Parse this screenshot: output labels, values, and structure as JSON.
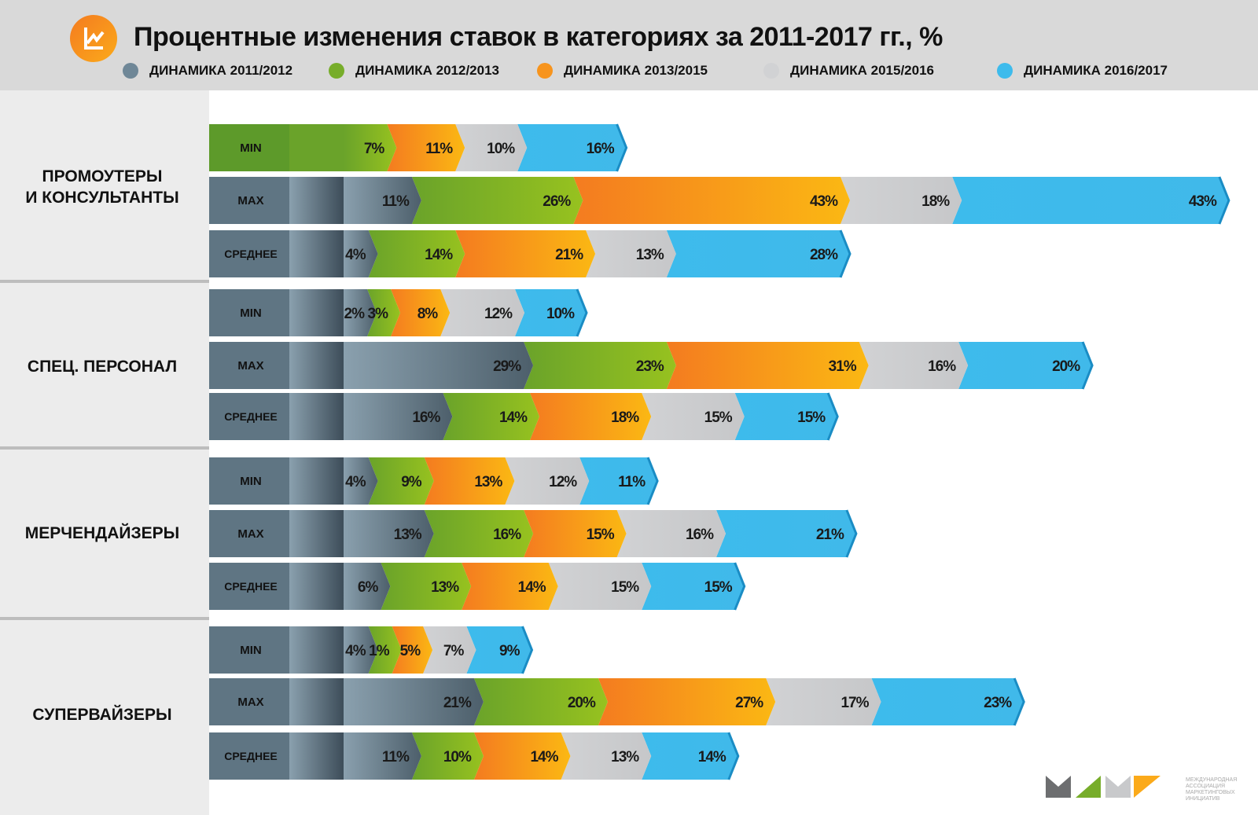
{
  "title": "Процентные изменения ставок в категориях за 2011-2017 гг., %",
  "legend": [
    {
      "label": "ДИНАМИКА 2011/2012",
      "color": "#6f8797"
    },
    {
      "label": "ДИНАМИКА 2012/2013",
      "color": "#77ad2a"
    },
    {
      "label": "ДИНАМИКА 2013/2015",
      "color": "#f7941d"
    },
    {
      "label": "ДИНАМИКА 2015/2016",
      "color": "#d1d2d4"
    },
    {
      "label": "ДИНАМИКА 2016/2017",
      "color": "#3dbbec"
    }
  ],
  "footer": {
    "org": "МЕЖДУНАРОДНАЯ АССОЦИАЦИЯ МАРКЕТИНГОВЫХ ИНИЦИАТИВ"
  },
  "chart_data": {
    "type": "bar",
    "stacked": true,
    "orientation": "horizontal",
    "title": "Процентные изменения ставок в категориях за 2011-2017 гг., %",
    "series_names": [
      "ДИНАМИКА 2011/2012",
      "ДИНАМИКА 2012/2013",
      "ДИНАМИКА 2013/2015",
      "ДИНАМИКА 2015/2016",
      "ДИНАМИКА 2016/2017"
    ],
    "groups": [
      {
        "name": "ПРОМОУТЕРЫ\nИ КОНСУЛЬТАНТЫ",
        "rows": [
          {
            "label": "MIN",
            "values": [
              null,
              7,
              11,
              10,
              16
            ]
          },
          {
            "label": "MAX",
            "values": [
              11,
              26,
              43,
              18,
              43
            ]
          },
          {
            "label": "СРЕДНЕЕ",
            "values": [
              4,
              14,
              21,
              13,
              28
            ]
          }
        ]
      },
      {
        "name": "СПЕЦ. ПЕРСОНАЛ",
        "rows": [
          {
            "label": "MIN",
            "values": [
              2,
              3,
              8,
              12,
              10
            ]
          },
          {
            "label": "MAX",
            "values": [
              29,
              23,
              31,
              16,
              20
            ]
          },
          {
            "label": "СРЕДНЕЕ",
            "values": [
              16,
              14,
              18,
              15,
              15
            ]
          }
        ]
      },
      {
        "name": "МЕРЧЕНДАЙЗЕРЫ",
        "rows": [
          {
            "label": "MIN",
            "values": [
              4,
              9,
              13,
              12,
              11
            ]
          },
          {
            "label": "MAX",
            "values": [
              13,
              16,
              15,
              16,
              21
            ]
          },
          {
            "label": "СРЕДНЕЕ",
            "values": [
              6,
              13,
              14,
              15,
              15
            ]
          }
        ]
      },
      {
        "name": "СУПЕРВАЙЗЕРЫ",
        "rows": [
          {
            "label": "MIN",
            "values": [
              4,
              1,
              5,
              7,
              9
            ]
          },
          {
            "label": "MAX",
            "values": [
              21,
              20,
              27,
              17,
              23
            ]
          },
          {
            "label": "СРЕДНЕЕ",
            "values": [
              11,
              10,
              14,
              13,
              14
            ]
          }
        ]
      }
    ],
    "unit": "%"
  }
}
